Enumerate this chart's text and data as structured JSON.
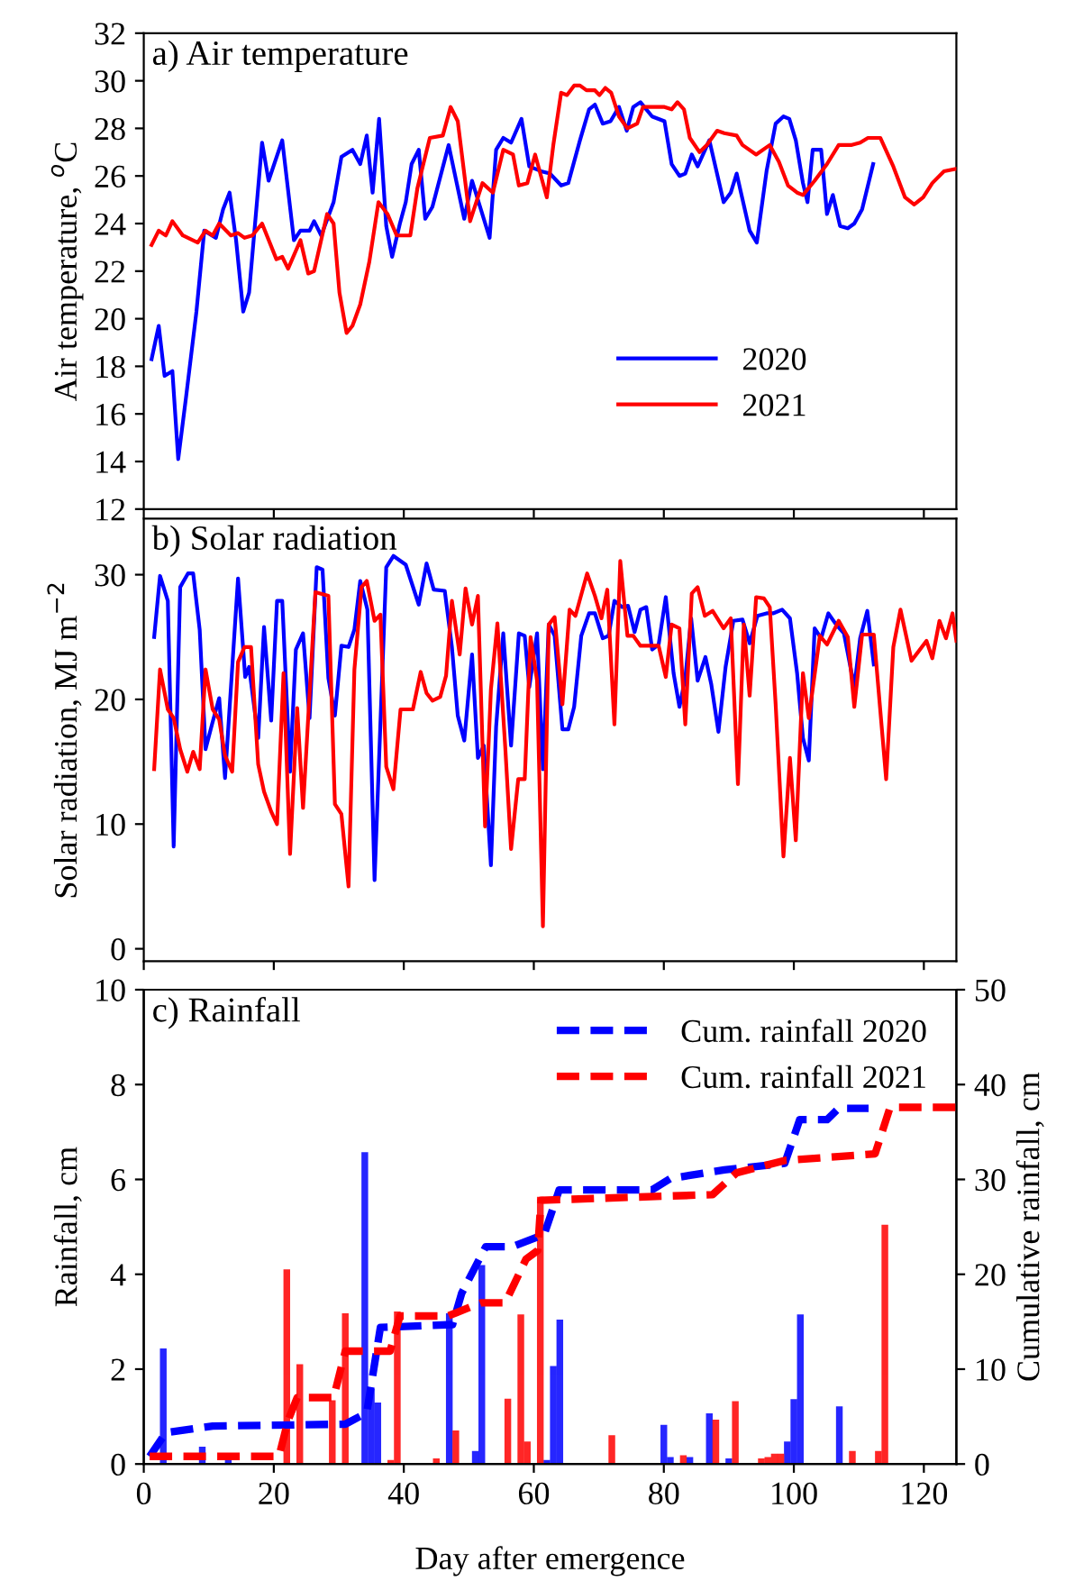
{
  "chart_data": [
    {
      "type": "line",
      "title": "a) Air temperature",
      "ylabel": "Air temperature, $^{o}$C",
      "xlim": [
        0,
        125
      ],
      "xticks": [
        0,
        20,
        40,
        60,
        80,
        100,
        120
      ],
      "ylim": [
        12,
        32
      ],
      "yticks": [
        12,
        14,
        16,
        18,
        20,
        22,
        24,
        26,
        28,
        30,
        32
      ],
      "tick_labels": "y",
      "legend": "bottom",
      "series": [
        {
          "name": "2020",
          "color": "#0000ff",
          "x": [
            1.2,
            2.3,
            3.2,
            4.4,
            5.3,
            6.5,
            8.1,
            9.3,
            11.1,
            12.2,
            13.2,
            14.2,
            15.3,
            16.2,
            18.2,
            19.2,
            21.3,
            23.1,
            24.1,
            25.5,
            26.2,
            27.3,
            29.2,
            30.4,
            32.1,
            33.3,
            34.3,
            35.2,
            36.2,
            37.3,
            38.2,
            39.4,
            40.3,
            41.2,
            42.3,
            43.3,
            44.4,
            46.9,
            49.3,
            50.5,
            53.2,
            54.2,
            55.3,
            56.5,
            58.1,
            59.3,
            61.1,
            62.5,
            64.2,
            65.3,
            67.1,
            68.5,
            69.4,
            70.6,
            71.8,
            73.1,
            74.3,
            75.3,
            76.4,
            78.2,
            80.1,
            81.2,
            82.4,
            83.3,
            84.3,
            85.2,
            87.0,
            89.2,
            90.3,
            91.2,
            93.2,
            94.3,
            95.8,
            97.2,
            98.4,
            99.3,
            100.3,
            101.4,
            102.1,
            102.9,
            104.2,
            105.1,
            106.0,
            107.1,
            108.3,
            109.3,
            110.5,
            112.2
          ],
          "values": [
            18.3,
            19.7,
            17.6,
            17.8,
            14.1,
            16.7,
            20.3,
            23.7,
            23.4,
            24.6,
            25.3,
            23.3,
            20.3,
            21.1,
            27.4,
            25.8,
            27.5,
            23.3,
            23.7,
            23.7,
            24.1,
            23.5,
            24.9,
            26.8,
            27.1,
            26.5,
            27.7,
            25.3,
            28.4,
            23.9,
            22.6,
            24.0,
            24.9,
            26.5,
            27.1,
            24.2,
            24.7,
            27.3,
            24.2,
            25.8,
            23.4,
            27.1,
            27.6,
            27.4,
            28.4,
            26.4,
            26.2,
            26.1,
            25.6,
            25.7,
            27.5,
            28.8,
            29.0,
            28.2,
            28.3,
            28.9,
            27.9,
            28.9,
            29.1,
            28.5,
            28.3,
            26.5,
            26.0,
            26.1,
            26.9,
            26.4,
            27.5,
            24.9,
            25.3,
            26.1,
            23.7,
            23.2,
            26.2,
            28.2,
            28.5,
            28.4,
            27.5,
            25.7,
            24.9,
            27.1,
            27.1,
            24.4,
            25.2,
            23.9,
            23.8,
            24.0,
            24.6,
            26.5
          ]
        },
        {
          "name": "2021",
          "color": "#ff0000",
          "x": [
            1.2,
            2.3,
            3.4,
            4.4,
            6.0,
            8.3,
            9.5,
            10.6,
            11.6,
            13.4,
            14.5,
            15.5,
            16.7,
            18.2,
            20.4,
            21.3,
            22.2,
            24.1,
            25.3,
            26.2,
            28.2,
            29.2,
            30.1,
            31.2,
            32.1,
            33.3,
            34.7,
            36.1,
            37.5,
            38.9,
            41.0,
            42.1,
            44.0,
            46.0,
            47.2,
            48.3,
            50.2,
            52.1,
            53.7,
            55.3,
            56.8,
            57.7,
            59.0,
            60.2,
            62.0,
            63.0,
            64.2,
            65.1,
            66.2,
            67.1,
            68.1,
            69.4,
            70.1,
            71.0,
            71.9,
            73.1,
            74.4,
            75.9,
            76.8,
            80.1,
            81.2,
            82.1,
            83.1,
            84.0,
            85.5,
            86.6,
            88.2,
            89.3,
            91.2,
            92.1,
            94.2,
            96.3,
            97.7,
            99.1,
            100.5,
            101.4,
            103.2,
            105.1,
            106.9,
            108.8,
            110.2,
            111.4,
            113.3,
            115.3,
            117.1,
            118.5,
            119.9,
            121.3,
            123.1,
            125.0
          ],
          "values": [
            23.1,
            23.7,
            23.5,
            24.1,
            23.5,
            23.2,
            23.7,
            23.5,
            24.0,
            23.5,
            23.6,
            23.4,
            23.5,
            24.0,
            22.5,
            22.6,
            22.1,
            23.3,
            21.9,
            22.0,
            24.4,
            24.0,
            21.1,
            19.4,
            19.7,
            20.6,
            22.4,
            24.9,
            24.4,
            23.5,
            23.5,
            25.5,
            27.6,
            27.7,
            28.9,
            28.3,
            24.1,
            25.7,
            25.3,
            27.1,
            26.9,
            25.6,
            25.7,
            26.9,
            25.1,
            27.3,
            29.5,
            29.4,
            29.8,
            29.8,
            29.6,
            29.6,
            29.4,
            29.7,
            29.5,
            28.5,
            28.0,
            28.2,
            28.9,
            28.9,
            28.8,
            29.1,
            28.8,
            27.6,
            27.0,
            27.3,
            27.9,
            27.8,
            27.7,
            27.3,
            26.9,
            27.3,
            26.6,
            25.6,
            25.3,
            25.2,
            25.8,
            26.5,
            27.3,
            27.3,
            27.4,
            27.6,
            27.6,
            26.4,
            25.1,
            24.8,
            25.1,
            25.7,
            26.2,
            26.3
          ]
        }
      ]
    },
    {
      "type": "line",
      "title": "b) Solar radiation",
      "ylabel": "Solar radiation, MJ m$^{−2}$",
      "xlim": [
        0,
        125
      ],
      "xticks": [
        0,
        20,
        40,
        60,
        80,
        100,
        120
      ],
      "ylim": [
        -1,
        34.5
      ],
      "yticks": [
        0,
        10,
        20,
        30
      ],
      "tick_labels": "y",
      "series": [
        {
          "color": "#0000ff",
          "x": [
            1.6,
            2.5,
            3.7,
            4.6,
            5.6,
            6.8,
            7.6,
            8.6,
            9.5,
            10.5,
            11.6,
            12.5,
            14.5,
            15.6,
            16.2,
            17.6,
            18.5,
            19.6,
            20.5,
            21.3,
            22.5,
            23.4,
            24.5,
            25.5,
            26.6,
            27.5,
            28.4,
            29.4,
            30.4,
            31.5,
            32.4,
            33.3,
            34.4,
            35.5,
            37.3,
            38.4,
            40.3,
            42.3,
            43.5,
            44.6,
            46.3,
            47.4,
            48.3,
            49.3,
            50.5,
            51.4,
            52.3,
            53.4,
            54.2,
            55.3,
            56.5,
            57.7,
            58.6,
            59.3,
            60.5,
            61.4,
            62.3,
            63.2,
            64.4,
            65.3,
            66.2,
            67.3,
            68.5,
            69.4,
            70.6,
            71.5,
            72.4,
            73.6,
            74.5,
            75.5,
            76.4,
            77.3,
            78.2,
            79.2,
            80.3,
            81.5,
            82.4,
            83.3,
            84.2,
            85.2,
            86.4,
            87.3,
            88.4,
            89.5,
            90.7,
            92.1,
            93.2,
            94.4,
            95.8,
            96.8,
            98.2,
            99.4,
            100.5,
            101.4,
            102.3,
            103.2,
            104.2,
            105.3,
            106.5,
            107.7,
            109.3,
            110.2,
            111.3,
            112.3
          ],
          "values": [
            25.0,
            29.9,
            27.9,
            8.2,
            29.0,
            30.1,
            30.1,
            25.6,
            16.0,
            18.0,
            20.1,
            13.7,
            29.7,
            21.8,
            22.6,
            16.9,
            25.8,
            18.3,
            27.9,
            27.9,
            14.2,
            24.0,
            25.3,
            18.5,
            30.6,
            30.4,
            21.7,
            18.7,
            24.3,
            24.2,
            25.6,
            29.5,
            27.2,
            5.5,
            30.6,
            31.5,
            30.8,
            27.6,
            30.9,
            28.8,
            28.7,
            24.2,
            18.7,
            16.7,
            23.6,
            15.3,
            16.3,
            6.7,
            17.8,
            25.3,
            16.3,
            25.3,
            25.1,
            21.0,
            25.3,
            14.4,
            26.0,
            25.1,
            17.6,
            17.6,
            19.4,
            25.1,
            26.9,
            26.9,
            24.9,
            25.1,
            27.9,
            27.4,
            27.5,
            25.4,
            27.2,
            27.4,
            24.0,
            24.4,
            28.2,
            22.1,
            19.4,
            21.7,
            26.5,
            21.5,
            23.4,
            21.2,
            17.4,
            22.6,
            26.3,
            26.4,
            24.5,
            26.7,
            26.9,
            26.9,
            27.2,
            26.5,
            22.1,
            16.9,
            15.1,
            25.7,
            24.9,
            26.9,
            26.0,
            25.3,
            21.0,
            24.9,
            27.1,
            22.8
          ]
        },
        {
          "color": "#ff0000",
          "x": [
            1.6,
            2.5,
            3.7,
            4.6,
            5.6,
            6.7,
            7.6,
            8.6,
            9.5,
            10.6,
            11.6,
            12.5,
            13.6,
            14.5,
            15.5,
            16.5,
            17.6,
            18.5,
            19.6,
            20.5,
            21.5,
            22.5,
            23.6,
            24.5,
            26.4,
            28.4,
            29.4,
            30.4,
            31.5,
            32.4,
            33.5,
            34.3,
            35.5,
            36.4,
            37.3,
            38.4,
            39.5,
            41.4,
            42.6,
            43.5,
            44.4,
            45.6,
            46.5,
            47.4,
            48.6,
            49.5,
            50.5,
            51.4,
            52.5,
            53.4,
            54.4,
            55.6,
            56.5,
            57.6,
            58.6,
            59.5,
            60.5,
            61.4,
            62.3,
            63.2,
            64.4,
            65.5,
            66.4,
            68.2,
            69.4,
            70.4,
            71.3,
            72.4,
            73.3,
            74.4,
            75.3,
            76.4,
            79.2,
            80.3,
            81.2,
            82.4,
            83.3,
            84.3,
            85.2,
            86.3,
            87.5,
            89.2,
            90.3,
            91.4,
            92.3,
            93.2,
            94.2,
            95.4,
            96.3,
            97.2,
            98.4,
            99.4,
            100.3,
            101.4,
            102.3,
            104.0,
            105.1,
            106.9,
            108.3,
            109.3,
            110.5,
            112.3,
            114.2,
            115.3,
            116.4,
            118.1,
            120.4,
            121.3,
            122.4,
            123.4,
            124.4,
            125.0
          ],
          "values": [
            14.4,
            22.4,
            19.2,
            18.5,
            16.0,
            14.2,
            15.8,
            14.4,
            22.4,
            19.2,
            18.4,
            15.5,
            14.2,
            23.0,
            24.2,
            24.2,
            14.8,
            12.6,
            11.0,
            10.0,
            22.1,
            7.6,
            19.3,
            11.3,
            28.6,
            28.3,
            11.6,
            10.8,
            5.0,
            22.4,
            29.0,
            29.5,
            26.3,
            26.8,
            14.6,
            12.8,
            19.2,
            19.2,
            22.2,
            20.5,
            19.9,
            20.2,
            21.9,
            27.9,
            23.6,
            28.9,
            26.0,
            28.3,
            9.8,
            20.8,
            26.1,
            16.2,
            8.0,
            13.6,
            13.6,
            25.0,
            21.5,
            1.8,
            26.0,
            26.6,
            19.6,
            27.2,
            26.7,
            30.1,
            28.3,
            26.5,
            28.8,
            18.0,
            31.1,
            25.1,
            25.1,
            24.3,
            24.3,
            21.8,
            26.0,
            25.7,
            18.0,
            28.5,
            29.0,
            26.7,
            27.1,
            25.7,
            26.5,
            13.2,
            26.0,
            20.3,
            28.2,
            28.1,
            27.4,
            19.6,
            7.4,
            15.3,
            8.7,
            22.1,
            18.5,
            25.1,
            24.4,
            26.3,
            25.0,
            19.4,
            25.2,
            25.2,
            13.6,
            24.2,
            27.2,
            23.1,
            24.7,
            23.3,
            26.3,
            24.9,
            26.9,
            24.7
          ]
        }
      ]
    },
    {
      "type": "bar",
      "title": "c) Rainfall",
      "ylabel": "Rainfall, cm",
      "y2label": "Cumulative rainfall, cm",
      "xlabel": "Day after emergence",
      "xlim": [
        0,
        125
      ],
      "xticks": [
        0,
        20,
        40,
        60,
        80,
        100,
        120
      ],
      "ylim": [
        0,
        10
      ],
      "yticks": [
        0,
        2,
        4,
        6,
        8,
        10
      ],
      "y2lim": [
        0,
        50
      ],
      "y2ticks": [
        0,
        10,
        20,
        30,
        40,
        50
      ],
      "legend": "top right",
      "series": [
        {
          "color": "#0000ff",
          "x": [
            3,
            9,
            13,
            34,
            35,
            36,
            47,
            51,
            52,
            62,
            63,
            64,
            80,
            81,
            84,
            87,
            90,
            99,
            100,
            101,
            107
          ],
          "values": [
            2.42,
            0.35,
            0.13,
            6.56,
            1.57,
            1.28,
            3.16,
            0.26,
            4.18,
            0.07,
            2.05,
            3.03,
            0.81,
            0.13,
            0.13,
            1.05,
            0.1,
            0.46,
            1.35,
            3.14,
            1.2
          ]
        },
        {
          "color": "#ff0000",
          "x": [
            22,
            24,
            29,
            31,
            38,
            39,
            45,
            48,
            56,
            58,
            59,
            61,
            72,
            83,
            88,
            91,
            95,
            96,
            97,
            98,
            109,
            113,
            114
          ],
          "values": [
            4.09,
            2.09,
            1.33,
            3.16,
            0.07,
            3.2,
            0.1,
            0.69,
            1.36,
            3.14,
            0.46,
            5.62,
            0.59,
            0.17,
            0.92,
            1.31,
            0.1,
            0.13,
            0.2,
            0.2,
            0.26,
            0.26,
            5.03
          ]
        },
        {
          "name": "Cum. rainfall 2020",
          "type": "line",
          "axis": "y2",
          "line_style": "dashed",
          "color": "#0000ff",
          "x": [
            0.9,
            3.4,
            10.6,
            31.0,
            34.3,
            36.4,
            47.5,
            48.9,
            52.6,
            56.7,
            61.6,
            63.9,
            78.2,
            81.0,
            89.3,
            98.6,
            100.9,
            105.1,
            106.9,
            111.5
          ],
          "values": [
            0.8,
            3.3,
            4.0,
            4.2,
            5.4,
            14.4,
            14.7,
            18.0,
            22.9,
            22.9,
            24.2,
            28.9,
            28.9,
            30.1,
            31.0,
            31.7,
            36.3,
            36.3,
            37.5,
            37.5
          ]
        },
        {
          "name": "Cum. rainfall 2021",
          "type": "line",
          "axis": "y2",
          "line_style": "dashed",
          "color": "#ff0000",
          "x": [
            0.9,
            20.8,
            22.2,
            23.6,
            29.2,
            31.0,
            37.9,
            39.4,
            46.8,
            51.9,
            55.6,
            58.8,
            60.6,
            61.1,
            87.5,
            91.2,
            98.6,
            112.5,
            114.8,
            125.0
          ],
          "values": [
            0.8,
            0.8,
            4.6,
            7.0,
            7.0,
            11.9,
            11.9,
            15.6,
            15.6,
            17.0,
            17.0,
            21.6,
            22.5,
            27.8,
            28.4,
            30.7,
            32.0,
            32.7,
            37.6,
            37.6
          ]
        }
      ]
    }
  ]
}
